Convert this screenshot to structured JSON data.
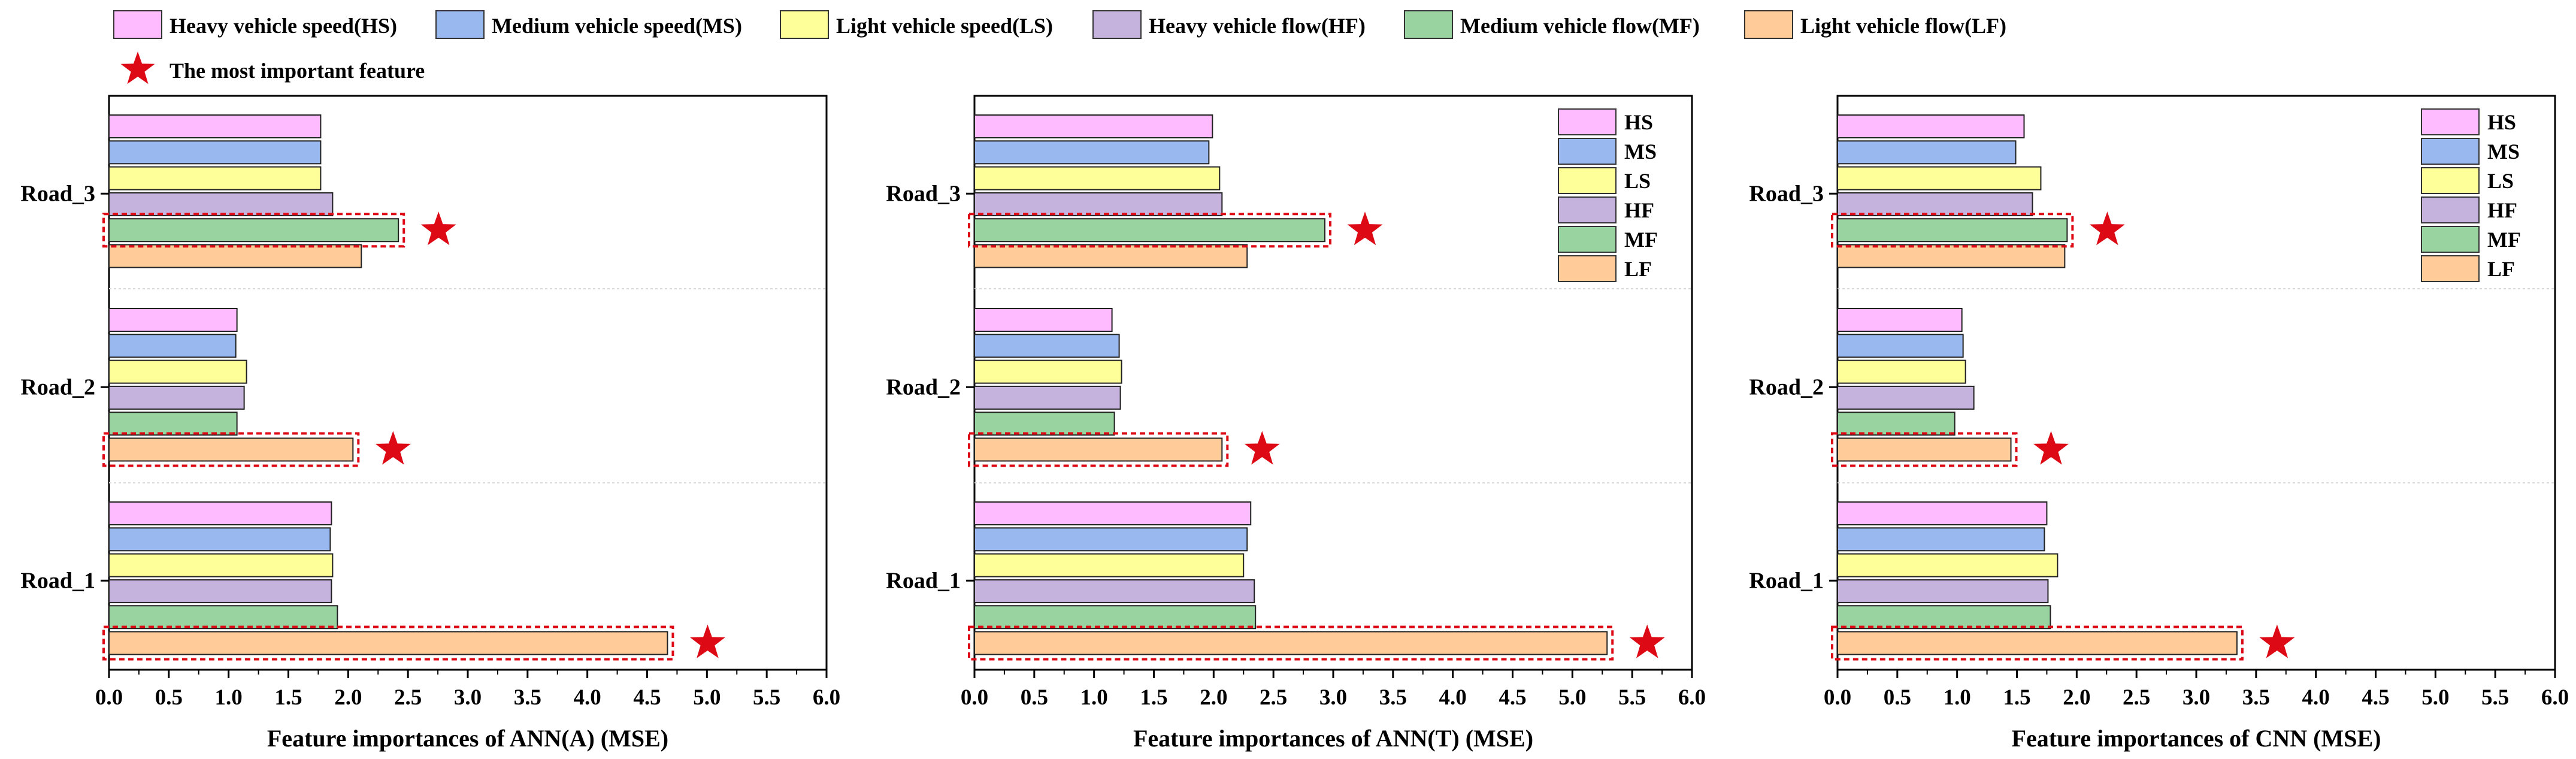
{
  "colors": {
    "HS": "#ffbbff",
    "MS": "#99b8f0",
    "LS": "#ffff99",
    "HF": "#c5b3dd",
    "MF": "#99d4a0",
    "LF": "#ffcc99",
    "star": "#dd0a16",
    "axis": "#000000",
    "bar_stroke": "#222222"
  },
  "legend": {
    "items": [
      {
        "key": "HS",
        "label": "Heavy vehicle speed(HS)"
      },
      {
        "key": "MS",
        "label": "Medium vehicle speed(MS)"
      },
      {
        "key": "LS",
        "label": "Light vehicle speed(LS)"
      },
      {
        "key": "HF",
        "label": "Heavy vehicle flow(HF)"
      },
      {
        "key": "MF",
        "label": "Medium vehicle flow(MF)"
      },
      {
        "key": "LF",
        "label": "Light vehicle flow(LF)"
      }
    ],
    "star_label": "The most important feature"
  },
  "chart_data": [
    {
      "type": "bar",
      "orientation": "horizontal",
      "title": "",
      "xlabel": "Feature importances of ANN(A) (MSE)",
      "ylabel": "",
      "xlim": [
        0,
        6
      ],
      "xticks": [
        "0.0",
        "0.5",
        "1.0",
        "1.5",
        "2.0",
        "2.5",
        "3.0",
        "3.5",
        "4.0",
        "4.5",
        "5.0",
        "5.5",
        "6.0"
      ],
      "categories": [
        "Road_3",
        "Road_2",
        "Road_1"
      ],
      "show_inset_legend": false,
      "series": [
        {
          "name": "HS",
          "values": [
            1.77,
            1.07,
            1.86
          ]
        },
        {
          "name": "MS",
          "values": [
            1.77,
            1.06,
            1.85
          ]
        },
        {
          "name": "LS",
          "values": [
            1.77,
            1.15,
            1.87
          ]
        },
        {
          "name": "HF",
          "values": [
            1.87,
            1.13,
            1.86
          ]
        },
        {
          "name": "MF",
          "values": [
            2.42,
            1.07,
            1.91
          ]
        },
        {
          "name": "LF",
          "values": [
            2.11,
            2.04,
            4.67
          ]
        }
      ],
      "highlight": [
        {
          "category": "Road_3",
          "feature": "MF"
        },
        {
          "category": "Road_2",
          "feature": "LF"
        },
        {
          "category": "Road_1",
          "feature": "LF"
        }
      ]
    },
    {
      "type": "bar",
      "orientation": "horizontal",
      "title": "",
      "xlabel": "Feature importances of ANN(T) (MSE)",
      "ylabel": "",
      "xlim": [
        0,
        6
      ],
      "xticks": [
        "0.0",
        "0.5",
        "1.0",
        "1.5",
        "2.0",
        "2.5",
        "3.0",
        "3.5",
        "4.0",
        "4.5",
        "5.0",
        "5.5",
        "6.0"
      ],
      "categories": [
        "Road_3",
        "Road_2",
        "Road_1"
      ],
      "show_inset_legend": true,
      "series": [
        {
          "name": "HS",
          "values": [
            1.99,
            1.15,
            2.31
          ]
        },
        {
          "name": "MS",
          "values": [
            1.96,
            1.21,
            2.28
          ]
        },
        {
          "name": "LS",
          "values": [
            2.05,
            1.23,
            2.25
          ]
        },
        {
          "name": "HF",
          "values": [
            2.07,
            1.22,
            2.34
          ]
        },
        {
          "name": "MF",
          "values": [
            2.93,
            1.17,
            2.35
          ]
        },
        {
          "name": "LF",
          "values": [
            2.28,
            2.07,
            5.29
          ]
        }
      ],
      "highlight": [
        {
          "category": "Road_3",
          "feature": "MF"
        },
        {
          "category": "Road_2",
          "feature": "LF"
        },
        {
          "category": "Road_1",
          "feature": "LF"
        }
      ]
    },
    {
      "type": "bar",
      "orientation": "horizontal",
      "title": "",
      "xlabel": "Feature importances of CNN (MSE)",
      "ylabel": "",
      "xlim": [
        0,
        6
      ],
      "xticks": [
        "0.0",
        "0.5",
        "1.0",
        "1.5",
        "2.0",
        "2.5",
        "3.0",
        "3.5",
        "4.0",
        "4.5",
        "5.0",
        "5.5",
        "6.0"
      ],
      "categories": [
        "Road_3",
        "Road_2",
        "Road_1"
      ],
      "show_inset_legend": true,
      "series": [
        {
          "name": "HS",
          "values": [
            1.56,
            1.04,
            1.75
          ]
        },
        {
          "name": "MS",
          "values": [
            1.49,
            1.05,
            1.73
          ]
        },
        {
          "name": "LS",
          "values": [
            1.7,
            1.07,
            1.84
          ]
        },
        {
          "name": "HF",
          "values": [
            1.63,
            1.14,
            1.76
          ]
        },
        {
          "name": "MF",
          "values": [
            1.92,
            0.98,
            1.78
          ]
        },
        {
          "name": "LF",
          "values": [
            1.9,
            1.45,
            3.34
          ]
        }
      ],
      "highlight": [
        {
          "category": "Road_3",
          "feature": "MF"
        },
        {
          "category": "Road_2",
          "feature": "LF"
        },
        {
          "category": "Road_1",
          "feature": "LF"
        }
      ]
    }
  ]
}
